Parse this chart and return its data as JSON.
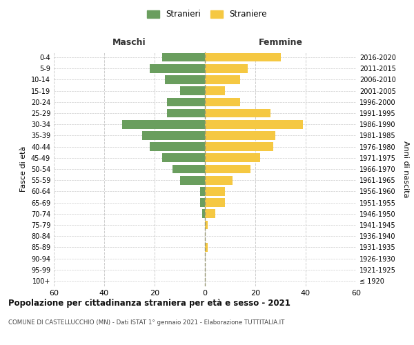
{
  "age_groups": [
    "100+",
    "95-99",
    "90-94",
    "85-89",
    "80-84",
    "75-79",
    "70-74",
    "65-69",
    "60-64",
    "55-59",
    "50-54",
    "45-49",
    "40-44",
    "35-39",
    "30-34",
    "25-29",
    "20-24",
    "15-19",
    "10-14",
    "5-9",
    "0-4"
  ],
  "birth_years": [
    "≤ 1920",
    "1921-1925",
    "1926-1930",
    "1931-1935",
    "1936-1940",
    "1941-1945",
    "1946-1950",
    "1951-1955",
    "1956-1960",
    "1961-1965",
    "1966-1970",
    "1971-1975",
    "1976-1980",
    "1981-1985",
    "1986-1990",
    "1991-1995",
    "1996-2000",
    "2001-2005",
    "2006-2010",
    "2011-2015",
    "2016-2020"
  ],
  "maschi": [
    0,
    0,
    0,
    0,
    0,
    0,
    1,
    2,
    2,
    10,
    13,
    17,
    22,
    25,
    33,
    15,
    15,
    10,
    16,
    22,
    17
  ],
  "femmine": [
    0,
    0,
    0,
    1,
    0,
    1,
    4,
    8,
    8,
    11,
    18,
    22,
    27,
    28,
    39,
    26,
    14,
    8,
    14,
    17,
    30
  ],
  "maschi_color": "#6a9e5e",
  "femmine_color": "#f5c842",
  "xlim": 60,
  "title": "Popolazione per cittadinanza straniera per età e sesso - 2021",
  "subtitle": "COMUNE DI CASTELLUCCHIO (MN) - Dati ISTAT 1° gennaio 2021 - Elaborazione TUTTITALIA.IT",
  "legend_maschi": "Stranieri",
  "legend_femmine": "Straniere",
  "xlabel_left": "Maschi",
  "xlabel_right": "Femmine",
  "ylabel_left": "Fasce di età",
  "ylabel_right": "Anni di nascita",
  "bg_color": "#ffffff",
  "grid_color": "#cccccc",
  "bar_height": 0.78
}
